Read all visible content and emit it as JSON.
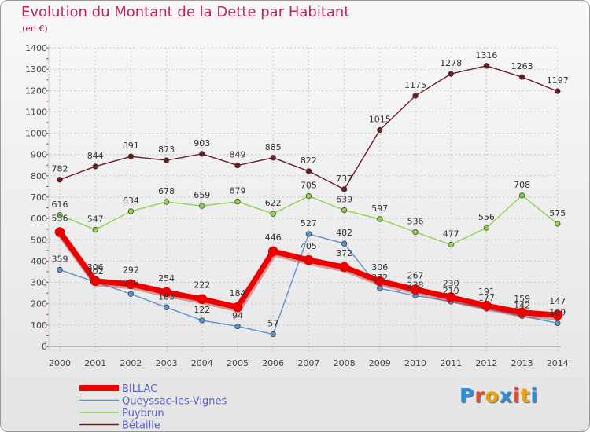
{
  "title": "Evolution du Montant de la Dette par Habitant",
  "subtitle": "(en €)",
  "logo": {
    "text": "Proxiti",
    "colors": [
      "#2b8ed6",
      "#e64a2e",
      "#f0a400",
      "#2b8ed6",
      "#e64a2e",
      "#f0a400",
      "#2b8ed6"
    ]
  },
  "chart_data": {
    "type": "line",
    "title": "Evolution du Montant de la Dette par Habitant",
    "ylabel": "(en €)",
    "xlabel": "",
    "ylim": [
      0,
      1400
    ],
    "yticks": [
      0,
      100,
      200,
      300,
      400,
      500,
      600,
      700,
      800,
      900,
      1000,
      1100,
      1200,
      1300,
      1400
    ],
    "categories": [
      "2000",
      "2001",
      "2002",
      "2003",
      "2004",
      "2005",
      "2006",
      "2007",
      "2008",
      "2009",
      "2010",
      "2011",
      "2012",
      "2013",
      "2014"
    ],
    "grid": true,
    "legend_position": "bottom-left",
    "series": [
      {
        "name": "Bétaille",
        "color": "#6b1e22",
        "values": [
          782,
          844,
          891,
          873,
          903,
          849,
          885,
          822,
          737,
          1015,
          1175,
          1278,
          1316,
          1263,
          1197
        ]
      },
      {
        "name": "Puybrun",
        "color": "#8fd24f",
        "values": [
          616,
          547,
          634,
          678,
          659,
          679,
          622,
          705,
          639,
          597,
          536,
          477,
          556,
          708,
          575
        ]
      },
      {
        "name": "Queyssac-les-Vignes",
        "color": "#5b93cf",
        "values": [
          359,
          302,
          246,
          183,
          122,
          94,
          57,
          527,
          482,
          272,
          238,
          210,
          177,
          142,
          109
        ]
      },
      {
        "name": "BILLAC",
        "color": "#ee0000",
        "values": [
          536,
          306,
          292,
          254,
          222,
          184,
          446,
          405,
          372,
          306,
          267,
          230,
          191,
          159,
          147
        ]
      }
    ],
    "legend": [
      "BILLAC",
      "Queyssac-les-Vignes",
      "Puybrun",
      "Bétaille"
    ]
  }
}
